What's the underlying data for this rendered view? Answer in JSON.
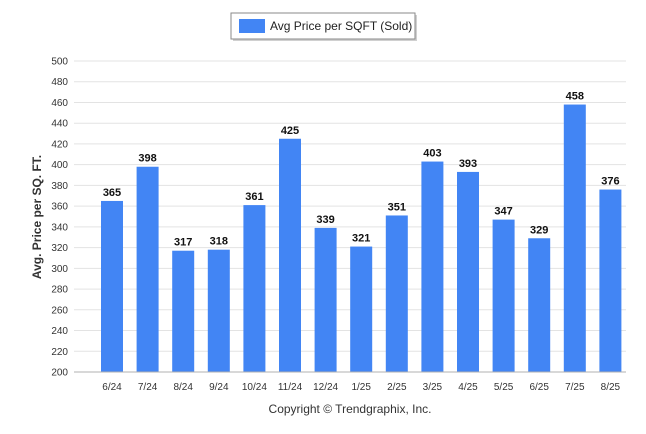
{
  "chart_data": {
    "type": "bar",
    "title": "",
    "xlabel": "",
    "ylabel": "Avg. Price per SQ. FT.",
    "ylim": [
      200,
      500
    ],
    "yticks": [
      200,
      220,
      240,
      260,
      280,
      300,
      320,
      340,
      360,
      380,
      400,
      420,
      440,
      460,
      480,
      500
    ],
    "grid": true,
    "legend": {
      "position": "top-center"
    },
    "categories": [
      "6/24",
      "7/24",
      "8/24",
      "9/24",
      "10/24",
      "11/24",
      "12/24",
      "1/25",
      "2/25",
      "3/25",
      "4/25",
      "5/25",
      "6/25",
      "7/25",
      "8/25"
    ],
    "series": [
      {
        "name": "Avg Price per SQFT (Sold)",
        "color": "#4285f4",
        "values": [
          365,
          398,
          317,
          318,
          361,
          425,
          339,
          321,
          351,
          403,
          393,
          347,
          329,
          458,
          376
        ]
      }
    ]
  },
  "footer": {
    "copyright": "Copyright © Trendgraphix, Inc."
  }
}
